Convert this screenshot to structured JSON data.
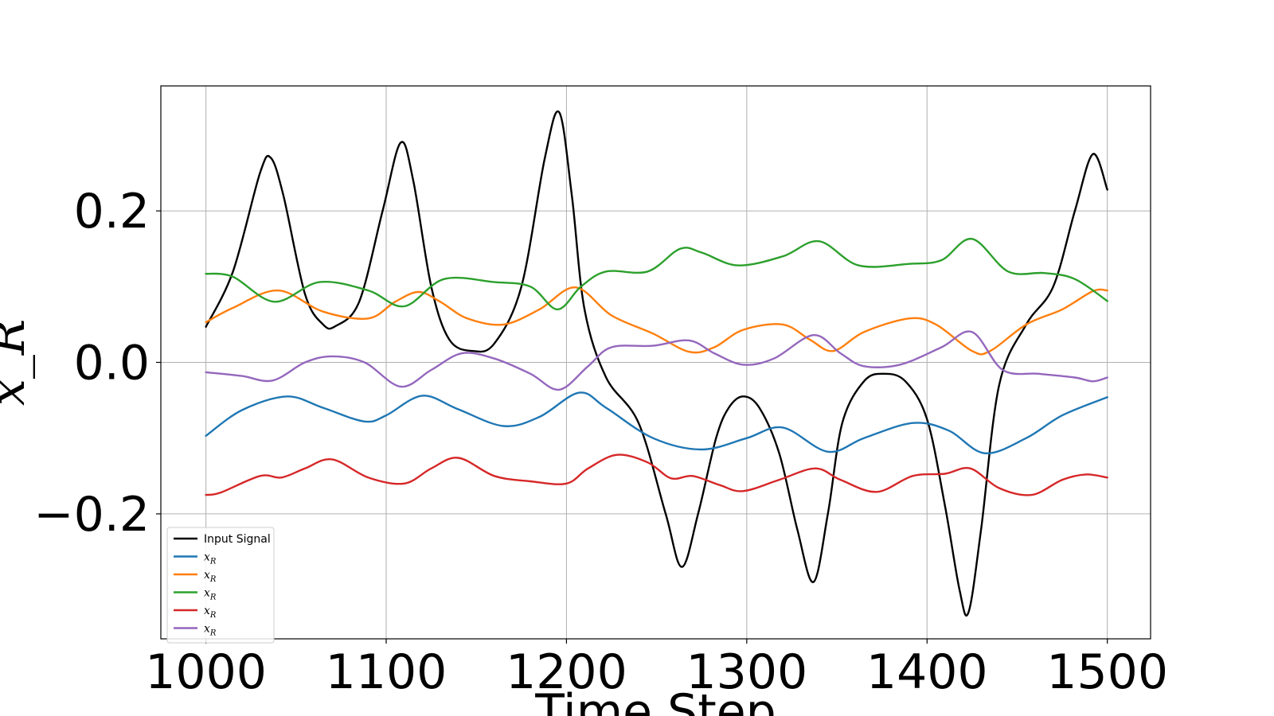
{
  "chart_data": {
    "type": "line",
    "title": "",
    "xlabel": "Time Step",
    "ylabel": "x_R",
    "xlim": [
      975,
      1524
    ],
    "ylim": [
      -0.365,
      0.365
    ],
    "xticks": [
      1000,
      1100,
      1200,
      1300,
      1400,
      1500
    ],
    "yticks": [
      -0.2,
      0.0,
      0.2
    ],
    "ytick_labels": [
      "−0.2",
      "0.0",
      "0.2"
    ],
    "grid": true,
    "legend_position": "lower-left",
    "series": [
      {
        "name": "Input Signal",
        "color": "#000000",
        "points": [
          [
            1000,
            0.047
          ],
          [
            1015,
            0.12
          ],
          [
            1030,
            0.25
          ],
          [
            1036,
            0.27
          ],
          [
            1043,
            0.22
          ],
          [
            1055,
            0.09
          ],
          [
            1065,
            0.05
          ],
          [
            1072,
            0.048
          ],
          [
            1085,
            0.08
          ],
          [
            1098,
            0.2
          ],
          [
            1108,
            0.29
          ],
          [
            1115,
            0.24
          ],
          [
            1125,
            0.1
          ],
          [
            1135,
            0.03
          ],
          [
            1148,
            0.015
          ],
          [
            1160,
            0.025
          ],
          [
            1175,
            0.1
          ],
          [
            1188,
            0.27
          ],
          [
            1196,
            0.33
          ],
          [
            1203,
            0.22
          ],
          [
            1210,
            0.07
          ],
          [
            1222,
            -0.02
          ],
          [
            1240,
            -0.08
          ],
          [
            1255,
            -0.2
          ],
          [
            1264,
            -0.27
          ],
          [
            1273,
            -0.2
          ],
          [
            1283,
            -0.1
          ],
          [
            1290,
            -0.06
          ],
          [
            1298,
            -0.045
          ],
          [
            1307,
            -0.06
          ],
          [
            1318,
            -0.12
          ],
          [
            1328,
            -0.22
          ],
          [
            1337,
            -0.29
          ],
          [
            1345,
            -0.2
          ],
          [
            1353,
            -0.08
          ],
          [
            1365,
            -0.025
          ],
          [
            1376,
            -0.015
          ],
          [
            1388,
            -0.025
          ],
          [
            1400,
            -0.075
          ],
          [
            1410,
            -0.19
          ],
          [
            1418,
            -0.3
          ],
          [
            1423,
            -0.33
          ],
          [
            1430,
            -0.22
          ],
          [
            1440,
            -0.03
          ],
          [
            1455,
            0.05
          ],
          [
            1470,
            0.1
          ],
          [
            1482,
            0.2
          ],
          [
            1492,
            0.275
          ],
          [
            1500,
            0.228
          ]
        ]
      },
      {
        "name": "x_R",
        "color": "#1f77b4",
        "points": [
          [
            1000,
            -0.097
          ],
          [
            1020,
            -0.063
          ],
          [
            1045,
            -0.045
          ],
          [
            1065,
            -0.06
          ],
          [
            1088,
            -0.078
          ],
          [
            1100,
            -0.07
          ],
          [
            1120,
            -0.044
          ],
          [
            1140,
            -0.062
          ],
          [
            1165,
            -0.084
          ],
          [
            1185,
            -0.072
          ],
          [
            1207,
            -0.04
          ],
          [
            1222,
            -0.06
          ],
          [
            1248,
            -0.1
          ],
          [
            1275,
            -0.115
          ],
          [
            1300,
            -0.1
          ],
          [
            1320,
            -0.086
          ],
          [
            1345,
            -0.118
          ],
          [
            1365,
            -0.1
          ],
          [
            1392,
            -0.08
          ],
          [
            1412,
            -0.09
          ],
          [
            1432,
            -0.12
          ],
          [
            1455,
            -0.1
          ],
          [
            1475,
            -0.07
          ],
          [
            1500,
            -0.046
          ]
        ]
      },
      {
        "name": "x_R",
        "color": "#ff7f0e",
        "points": [
          [
            1000,
            0.053
          ],
          [
            1015,
            0.072
          ],
          [
            1040,
            0.095
          ],
          [
            1065,
            0.067
          ],
          [
            1090,
            0.058
          ],
          [
            1105,
            0.08
          ],
          [
            1118,
            0.093
          ],
          [
            1130,
            0.08
          ],
          [
            1145,
            0.058
          ],
          [
            1165,
            0.05
          ],
          [
            1185,
            0.07
          ],
          [
            1205,
            0.099
          ],
          [
            1225,
            0.062
          ],
          [
            1248,
            0.038
          ],
          [
            1268,
            0.014
          ],
          [
            1282,
            0.02
          ],
          [
            1298,
            0.043
          ],
          [
            1320,
            0.05
          ],
          [
            1335,
            0.03
          ],
          [
            1348,
            0.015
          ],
          [
            1365,
            0.04
          ],
          [
            1390,
            0.058
          ],
          [
            1405,
            0.05
          ],
          [
            1425,
            0.015
          ],
          [
            1435,
            0.015
          ],
          [
            1455,
            0.05
          ],
          [
            1475,
            0.07
          ],
          [
            1492,
            0.094
          ],
          [
            1500,
            0.095
          ]
        ]
      },
      {
        "name": "x_R",
        "color": "#2ca02c",
        "points": [
          [
            1000,
            0.117
          ],
          [
            1015,
            0.113
          ],
          [
            1038,
            0.08
          ],
          [
            1063,
            0.106
          ],
          [
            1090,
            0.095
          ],
          [
            1110,
            0.074
          ],
          [
            1132,
            0.11
          ],
          [
            1160,
            0.106
          ],
          [
            1180,
            0.1
          ],
          [
            1195,
            0.07
          ],
          [
            1208,
            0.1
          ],
          [
            1222,
            0.12
          ],
          [
            1245,
            0.12
          ],
          [
            1263,
            0.15
          ],
          [
            1275,
            0.145
          ],
          [
            1295,
            0.128
          ],
          [
            1320,
            0.14
          ],
          [
            1340,
            0.16
          ],
          [
            1362,
            0.128
          ],
          [
            1390,
            0.13
          ],
          [
            1408,
            0.135
          ],
          [
            1425,
            0.163
          ],
          [
            1445,
            0.12
          ],
          [
            1465,
            0.118
          ],
          [
            1482,
            0.11
          ],
          [
            1500,
            0.081
          ]
        ]
      },
      {
        "name": "x_R",
        "color": "#d62728",
        "points": [
          [
            1000,
            -0.175
          ],
          [
            1008,
            -0.172
          ],
          [
            1030,
            -0.15
          ],
          [
            1042,
            -0.152
          ],
          [
            1055,
            -0.14
          ],
          [
            1070,
            -0.128
          ],
          [
            1090,
            -0.152
          ],
          [
            1110,
            -0.16
          ],
          [
            1125,
            -0.14
          ],
          [
            1140,
            -0.126
          ],
          [
            1160,
            -0.15
          ],
          [
            1180,
            -0.157
          ],
          [
            1200,
            -0.16
          ],
          [
            1212,
            -0.14
          ],
          [
            1228,
            -0.122
          ],
          [
            1245,
            -0.132
          ],
          [
            1258,
            -0.153
          ],
          [
            1270,
            -0.15
          ],
          [
            1285,
            -0.162
          ],
          [
            1298,
            -0.17
          ],
          [
            1318,
            -0.155
          ],
          [
            1338,
            -0.14
          ],
          [
            1352,
            -0.155
          ],
          [
            1372,
            -0.171
          ],
          [
            1392,
            -0.15
          ],
          [
            1410,
            -0.147
          ],
          [
            1424,
            -0.14
          ],
          [
            1440,
            -0.166
          ],
          [
            1458,
            -0.175
          ],
          [
            1475,
            -0.155
          ],
          [
            1488,
            -0.148
          ],
          [
            1500,
            -0.152
          ]
        ]
      },
      {
        "name": "x_R",
        "color": "#9467bd",
        "points": [
          [
            1000,
            -0.013
          ],
          [
            1020,
            -0.018
          ],
          [
            1037,
            -0.024
          ],
          [
            1055,
            0.0
          ],
          [
            1070,
            0.008
          ],
          [
            1088,
            0.0
          ],
          [
            1108,
            -0.032
          ],
          [
            1125,
            -0.01
          ],
          [
            1142,
            0.012
          ],
          [
            1160,
            0.005
          ],
          [
            1180,
            -0.015
          ],
          [
            1196,
            -0.036
          ],
          [
            1212,
            -0.005
          ],
          [
            1225,
            0.02
          ],
          [
            1248,
            0.022
          ],
          [
            1268,
            0.029
          ],
          [
            1282,
            0.012
          ],
          [
            1298,
            -0.003
          ],
          [
            1315,
            0.005
          ],
          [
            1337,
            0.036
          ],
          [
            1352,
            0.012
          ],
          [
            1365,
            -0.005
          ],
          [
            1385,
            -0.003
          ],
          [
            1408,
            0.02
          ],
          [
            1425,
            0.04
          ],
          [
            1442,
            -0.01
          ],
          [
            1462,
            -0.015
          ],
          [
            1482,
            -0.02
          ],
          [
            1492,
            -0.025
          ],
          [
            1500,
            -0.02
          ]
        ]
      }
    ],
    "legend_labels": [
      "Input Signal",
      "x",
      "x",
      "x",
      "x",
      "x"
    ],
    "legend_subscripts": [
      "",
      "R",
      "R",
      "R",
      "R",
      "R"
    ]
  }
}
